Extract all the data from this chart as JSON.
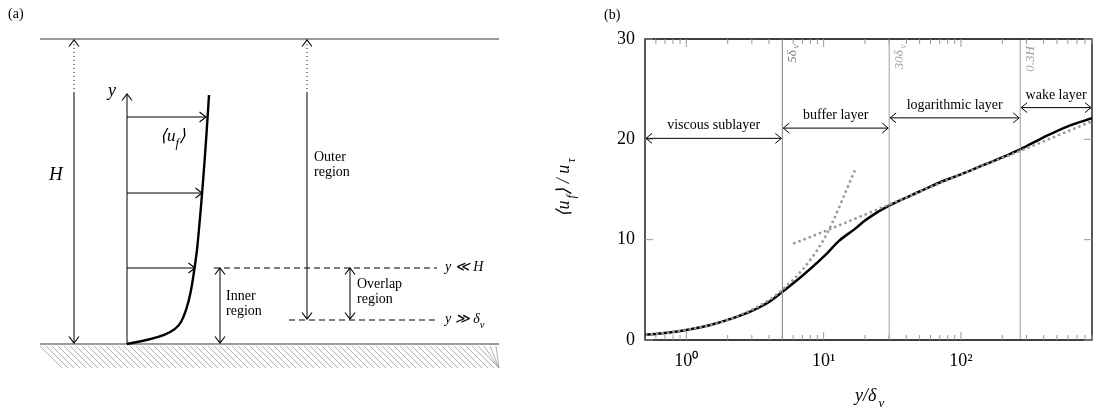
{
  "chart_data": [
    {
      "type": "other",
      "title": "(a)",
      "annotations": [
        "H",
        "y",
        "⟨u$_{f}$⟩",
        "Outer region",
        "Inner region",
        "Overlap region",
        "y ≪ H",
        "y ≫ δ$_{ν}$"
      ]
    },
    {
      "type": "line",
      "title": "(b)",
      "xlabel": "y/δ$_{ν}$",
      "ylabel": "⟨u$_{f}$⟩ / u$_{τ}$",
      "log": "x",
      "grid": false,
      "legend": false,
      "marker": "none",
      "xlim": [
        0.5,
        900
      ],
      "ylim": [
        0,
        30
      ],
      "yticks": [
        0,
        10,
        20,
        30
      ],
      "xticks": [
        {
          "value": 0.6,
          "label": null
        },
        {
          "value": 0.7,
          "label": null
        },
        {
          "value": 0.8,
          "label": null
        },
        {
          "value": 0.9,
          "label": null
        },
        {
          "value": 1,
          "label": "10⁰"
        },
        {
          "value": 2,
          "label": null
        },
        {
          "value": 3,
          "label": null
        },
        {
          "value": 4,
          "label": null
        },
        {
          "value": 5,
          "label": null
        },
        {
          "value": 6,
          "label": null
        },
        {
          "value": 7,
          "label": null
        },
        {
          "value": 8,
          "label": null
        },
        {
          "value": 9,
          "label": null
        },
        {
          "value": 10,
          "label": "10¹"
        },
        {
          "value": 20,
          "label": null
        },
        {
          "value": 30,
          "label": null
        },
        {
          "value": 40,
          "label": null
        },
        {
          "value": 50,
          "label": null
        },
        {
          "value": 60,
          "label": null
        },
        {
          "value": 70,
          "label": null
        },
        {
          "value": 80,
          "label": null
        },
        {
          "value": 90,
          "label": null
        },
        {
          "value": 100,
          "label": "10²"
        },
        {
          "value": 200,
          "label": null
        },
        {
          "value": 300,
          "label": null
        },
        {
          "value": 400,
          "label": null
        },
        {
          "value": 500,
          "label": null
        },
        {
          "value": 600,
          "label": null
        },
        {
          "value": 700,
          "label": null
        },
        {
          "value": 800,
          "label": null
        },
        {
          "value": 900,
          "label": null
        }
      ],
      "series": [
        {
          "color": "#999999",
          "line_style": "dotted",
          "x": [
            0.5,
            1,
            2,
            5,
            10,
            17
          ],
          "values": [
            0.5,
            1,
            2,
            5,
            10,
            17
          ]
        },
        {
          "color": "#999999",
          "line_style": "dotted",
          "x": [
            6,
            10,
            30,
            100,
            300,
            900
          ],
          "values": [
            9.6,
            10.8,
            13.5,
            16.5,
            19.1,
            21.8
          ]
        },
        {
          "color": "#000000",
          "line_style": "solid",
          "x": [
            0.5,
            0.7,
            1,
            1.5,
            2,
            3,
            4,
            5,
            7,
            10,
            13,
            17,
            20,
            25,
            30,
            40,
            50,
            70,
            100,
            150,
            200,
            270,
            400,
            600,
            900
          ],
          "values": [
            0.5,
            0.7,
            1,
            1.5,
            2,
            2.9,
            3.8,
            4.8,
            6.4,
            8.3,
            9.9,
            11.1,
            11.9,
            12.8,
            13.4,
            14.2,
            14.8,
            15.7,
            16.5,
            17.5,
            18.2,
            19,
            20.2,
            21.3,
            22.1
          ]
        }
      ],
      "ref_lines": [
        {
          "axis": "x",
          "value": 5,
          "label": "5δ$_{ν}$",
          "color": "#808080"
        },
        {
          "axis": "x",
          "value": 30,
          "label": "30δ$_{ν}$",
          "color": "#a0a0a0"
        },
        {
          "axis": "x",
          "value": 270,
          "label": "0.3H",
          "color": "#a0a0a0"
        }
      ],
      "annotations": [
        "viscous sublayer",
        "buffer layer",
        "logarithmic layer",
        "wake layer"
      ]
    }
  ]
}
